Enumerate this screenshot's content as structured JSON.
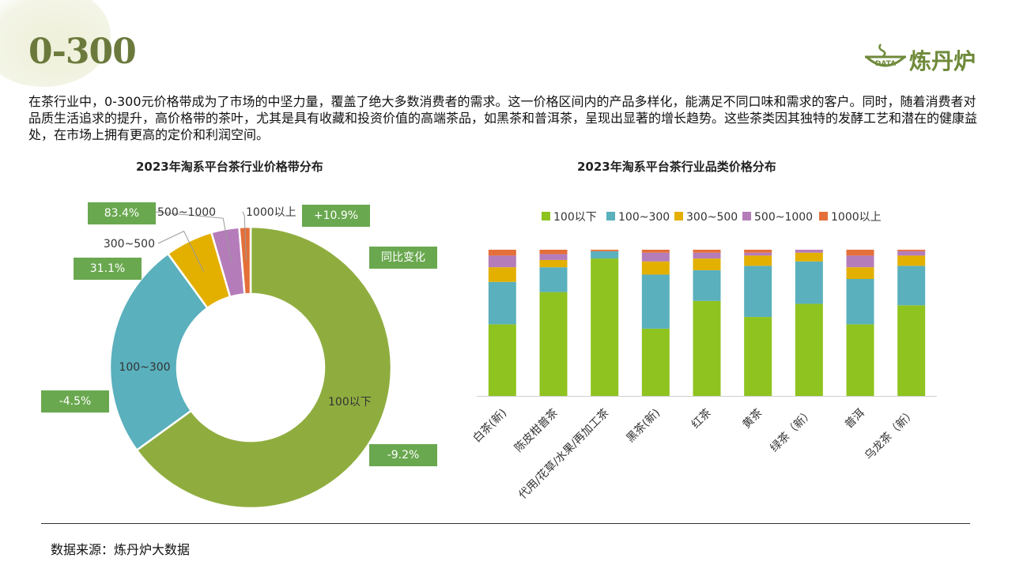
{
  "header": {
    "title": "0-300",
    "logo_badge": "DATA",
    "logo_text": "炼丹炉"
  },
  "intro": "在茶行业中，0-300元价格带成为了市场的中坚力量，覆盖了绝大多数消费者的需求。这一价格区间内的产品多样化，能满足不同口味和需求的客户。同时，随着消费者对品质生活追求的提升，高价格带的茶叶，尤其是具有收藏和投资价值的高端茶品，如黑茶和普洱茶，呈现出显著的增长趋势。这些茶类因其独特的发酵工艺和潜在的健康益处，在市场上拥有更高的定价和利润空间。",
  "colors": {
    "accent": "#6aa84f",
    "title": "#6b7a3c"
  },
  "chart_data": [
    {
      "type": "pie",
      "variant": "donut",
      "title": "2023年淘系平台茶行业价格带分布",
      "categories": [
        "100以下",
        "100~300",
        "300~500",
        "500~1000",
        "1000以上"
      ],
      "values": [
        65,
        25,
        5.5,
        3.2,
        1.3
      ],
      "colors": [
        "#8fad3f",
        "#5ab0bd",
        "#e3b000",
        "#b57cba",
        "#e46f39"
      ],
      "legend_text": "同比变化",
      "yoy_changes": [
        "-9.2%",
        "-4.5%",
        "31.1%",
        "83.4%",
        "+10.9%"
      ]
    },
    {
      "type": "bar",
      "stacked": true,
      "title": "2023年淘系平台茶行业品类价格分布",
      "categories": [
        "白茶(新)",
        "陈皮柑普茶",
        "代用/花草/水果/再加工茶",
        "黑茶(新)",
        "红茶",
        "黄茶",
        "绿茶（新）",
        "普洱",
        "乌龙茶（新）"
      ],
      "series": [
        {
          "name": "100以下",
          "color": "#8fc31f",
          "values": [
            49,
            71,
            94,
            46,
            65,
            54,
            63,
            49,
            62
          ]
        },
        {
          "name": "100~300",
          "color": "#5ab0bd",
          "values": [
            29,
            17,
            5,
            37,
            21,
            35,
            29,
            31,
            27
          ]
        },
        {
          "name": "300~500",
          "color": "#e3b000",
          "values": [
            10,
            5,
            0,
            9,
            8,
            7,
            6,
            8,
            7
          ]
        },
        {
          "name": "500~1000",
          "color": "#b57cba",
          "values": [
            8,
            4,
            0,
            6,
            4,
            2,
            2,
            8,
            3
          ]
        },
        {
          "name": "1000以上",
          "color": "#e46f39",
          "values": [
            4,
            3,
            1,
            2,
            2,
            2,
            0,
            4,
            1
          ]
        }
      ],
      "ylim": [
        0,
        100
      ],
      "legend_position": "top"
    }
  ],
  "source": "数据来源：炼丹炉大数据"
}
